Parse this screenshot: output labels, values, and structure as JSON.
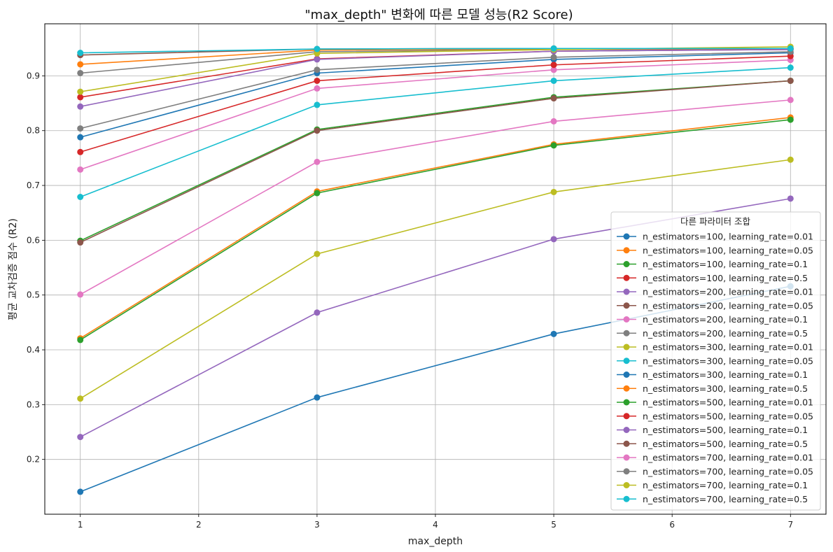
{
  "chart_data": {
    "type": "line",
    "title": "\"max_depth\" 변화에 따른 모델 성능(R2 Score)",
    "xlabel": "max_depth",
    "ylabel": "평균 교차검증 점수 (R2)",
    "x": [
      1,
      3,
      5,
      7
    ],
    "xlim": [
      0.7,
      7.3
    ],
    "ylim": [
      0.1,
      0.995
    ],
    "xticks": [
      1,
      2,
      3,
      4,
      5,
      6,
      7
    ],
    "yticks": [
      0.2,
      0.3,
      0.4,
      0.5,
      0.6,
      0.7,
      0.8,
      0.9
    ],
    "grid": true,
    "legend_title": "다른 파라미터 조합",
    "legend_position": "lower right",
    "series": [
      {
        "name": "n_estimators=100, learning_rate=0.01",
        "color": "#1f77b4",
        "values": [
          0.141,
          0.313,
          0.429,
          0.516
        ]
      },
      {
        "name": "n_estimators=100, learning_rate=0.05",
        "color": "#ff7f0e",
        "values": [
          0.421,
          0.689,
          0.775,
          0.824
        ]
      },
      {
        "name": "n_estimators=100, learning_rate=0.1",
        "color": "#2ca02c",
        "values": [
          0.599,
          0.802,
          0.861,
          0.891
        ]
      },
      {
        "name": "n_estimators=100, learning_rate=0.5",
        "color": "#d62728",
        "values": [
          0.861,
          0.931,
          0.945,
          0.948
        ]
      },
      {
        "name": "n_estimators=200, learning_rate=0.01",
        "color": "#9467bd",
        "values": [
          0.241,
          0.468,
          0.602,
          0.676
        ]
      },
      {
        "name": "n_estimators=200, learning_rate=0.05",
        "color": "#8c564b",
        "values": [
          0.596,
          0.8,
          0.859,
          0.891
        ]
      },
      {
        "name": "n_estimators=200, learning_rate=0.1",
        "color": "#e377c2",
        "values": [
          0.729,
          0.877,
          0.911,
          0.929
        ]
      },
      {
        "name": "n_estimators=200, learning_rate=0.5",
        "color": "#7f7f7f",
        "values": [
          0.905,
          0.944,
          0.948,
          0.949
        ]
      },
      {
        "name": "n_estimators=300, learning_rate=0.01",
        "color": "#bcbd22",
        "values": [
          0.311,
          0.575,
          0.688,
          0.747
        ]
      },
      {
        "name": "n_estimators=300, learning_rate=0.05",
        "color": "#17becf",
        "values": [
          0.679,
          0.847,
          0.891,
          0.915
        ]
      },
      {
        "name": "n_estimators=300, learning_rate=0.1",
        "color": "#1f77b4",
        "values": [
          0.788,
          0.905,
          0.93,
          0.942
        ]
      },
      {
        "name": "n_estimators=300, learning_rate=0.5",
        "color": "#ff7f0e",
        "values": [
          0.921,
          0.947,
          0.949,
          0.95
        ]
      },
      {
        "name": "n_estimators=500, learning_rate=0.01",
        "color": "#2ca02c",
        "values": [
          0.418,
          0.686,
          0.773,
          0.82
        ]
      },
      {
        "name": "n_estimators=500, learning_rate=0.05",
        "color": "#d62728",
        "values": [
          0.761,
          0.891,
          0.92,
          0.936
        ]
      },
      {
        "name": "n_estimators=500, learning_rate=0.1",
        "color": "#9467bd",
        "values": [
          0.844,
          0.93,
          0.945,
          0.948
        ]
      },
      {
        "name": "n_estimators=500, learning_rate=0.5",
        "color": "#8c564b",
        "values": [
          0.938,
          0.949,
          0.95,
          0.95
        ]
      },
      {
        "name": "n_estimators=700, learning_rate=0.01",
        "color": "#e377c2",
        "values": [
          0.501,
          0.743,
          0.817,
          0.856
        ]
      },
      {
        "name": "n_estimators=700, learning_rate=0.05",
        "color": "#7f7f7f",
        "values": [
          0.804,
          0.911,
          0.934,
          0.944
        ]
      },
      {
        "name": "n_estimators=700, learning_rate=0.1",
        "color": "#bcbd22",
        "values": [
          0.871,
          0.941,
          0.948,
          0.953
        ]
      },
      {
        "name": "n_estimators=700, learning_rate=0.5",
        "color": "#17becf",
        "values": [
          0.942,
          0.949,
          0.95,
          0.95
        ]
      }
    ]
  }
}
